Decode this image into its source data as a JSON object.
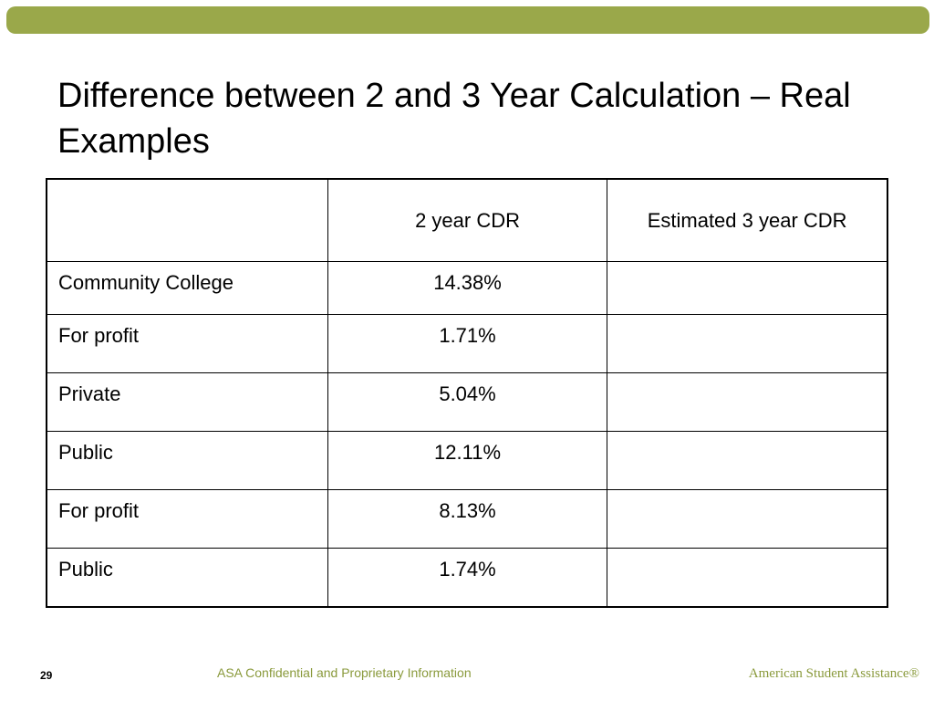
{
  "slide": {
    "title": "Difference between 2 and 3 Year Calculation – Real Examples",
    "page_number": "29",
    "confidential_note": "ASA Confidential and Proprietary Information",
    "brand": "American Student Assistance®",
    "accent_color": "#9aa84a"
  },
  "table": {
    "headers": [
      "",
      "2 year CDR",
      "Estimated 3 year CDR"
    ],
    "rows": [
      {
        "label": "Community College",
        "two_year": "14.38%",
        "three_year": ""
      },
      {
        "label": "For profit",
        "two_year": "1.71%",
        "three_year": ""
      },
      {
        "label": "Private",
        "two_year": "5.04%",
        "three_year": ""
      },
      {
        "label": "Public",
        "two_year": "12.11%",
        "three_year": ""
      },
      {
        "label": "For profit",
        "two_year": "8.13%",
        "three_year": ""
      },
      {
        "label": "Public",
        "two_year": "1.74%",
        "three_year": ""
      }
    ]
  }
}
